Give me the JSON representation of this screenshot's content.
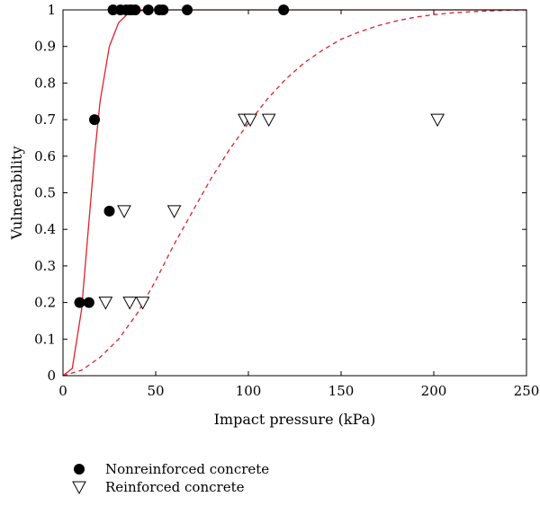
{
  "chart_data": {
    "type": "scatter",
    "title": "",
    "xlabel": "Impact pressure (kPa)",
    "ylabel": "Vulnerability",
    "xlim": [
      0,
      250
    ],
    "ylim": [
      0,
      1
    ],
    "xticks": [
      0,
      50,
      100,
      150,
      200,
      250
    ],
    "yticks": [
      0,
      0.1,
      0.2,
      0.3,
      0.4,
      0.5,
      0.6,
      0.7,
      0.8,
      0.9,
      1
    ],
    "grid": false,
    "legend_position": "bottom-left, below plot",
    "series": [
      {
        "name": "Nonreinforced concrete",
        "marker": "filled-circle",
        "color": "#000000",
        "points": [
          [
            9,
            0.2
          ],
          [
            14,
            0.2
          ],
          [
            17,
            0.7
          ],
          [
            25,
            0.45
          ],
          [
            27,
            1
          ],
          [
            31,
            1
          ],
          [
            34,
            1
          ],
          [
            36,
            1
          ],
          [
            37,
            1
          ],
          [
            39,
            1
          ],
          [
            46,
            1
          ],
          [
            52,
            1
          ],
          [
            54,
            1
          ],
          [
            67,
            1
          ],
          [
            119,
            1
          ]
        ]
      },
      {
        "name": "Reinforced concrete",
        "marker": "open-triangle-down",
        "color": "#000000",
        "points": [
          [
            23,
            0.2
          ],
          [
            36,
            0.2
          ],
          [
            43,
            0.2
          ],
          [
            33,
            0.45
          ],
          [
            60,
            0.45
          ],
          [
            98,
            0.7
          ],
          [
            101,
            0.7
          ],
          [
            111,
            0.7
          ],
          [
            202,
            0.7
          ]
        ]
      }
    ],
    "curves": [
      {
        "label": "",
        "style": "solid",
        "color": "#e0202a",
        "shape": "fitted vulnerability curve, nonreinforced",
        "points": [
          [
            0,
            0
          ],
          [
            5,
            0.02
          ],
          [
            10,
            0.18
          ],
          [
            14,
            0.42
          ],
          [
            17,
            0.6
          ],
          [
            20,
            0.75
          ],
          [
            25,
            0.9
          ],
          [
            30,
            0.965
          ],
          [
            35,
            0.99
          ],
          [
            40,
            0.997
          ],
          [
            50,
            1
          ],
          [
            250,
            1
          ]
        ]
      },
      {
        "label": "",
        "style": "dashed",
        "color": "#e0202a",
        "shape": "fitted vulnerability curve, reinforced",
        "points": [
          [
            0,
            0
          ],
          [
            10,
            0.015
          ],
          [
            20,
            0.05
          ],
          [
            30,
            0.1
          ],
          [
            40,
            0.17
          ],
          [
            50,
            0.26
          ],
          [
            60,
            0.36
          ],
          [
            70,
            0.45
          ],
          [
            80,
            0.54
          ],
          [
            90,
            0.62
          ],
          [
            100,
            0.69
          ],
          [
            110,
            0.755
          ],
          [
            120,
            0.81
          ],
          [
            130,
            0.855
          ],
          [
            140,
            0.89
          ],
          [
            150,
            0.92
          ],
          [
            160,
            0.94
          ],
          [
            170,
            0.957
          ],
          [
            180,
            0.97
          ],
          [
            190,
            0.98
          ],
          [
            200,
            0.987
          ],
          [
            210,
            0.992
          ],
          [
            220,
            0.995
          ],
          [
            230,
            0.997
          ],
          [
            240,
            0.999
          ],
          [
            250,
            1
          ]
        ]
      }
    ]
  }
}
